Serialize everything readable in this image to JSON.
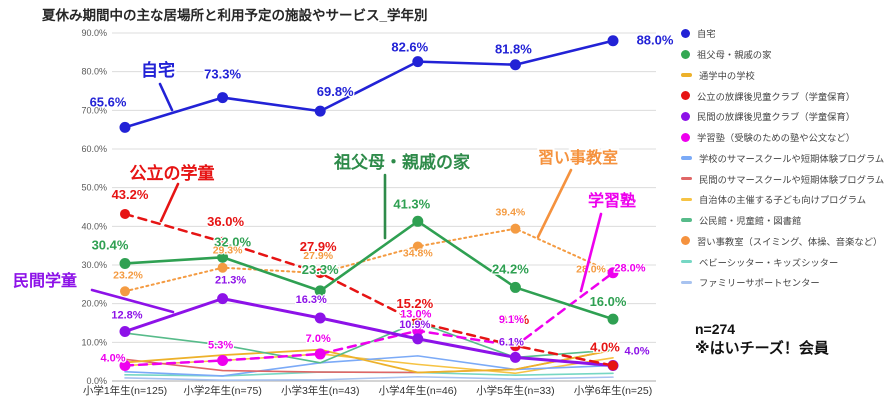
{
  "title": "夏休み期間中の主な居場所と利用予定の施設やサービス_学年別",
  "note": {
    "sample_size": "n=274",
    "membership": "※はいチーズ！会員"
  },
  "legend": {
    "position": "right",
    "items": [
      {
        "key": "home",
        "label": "自宅",
        "color": "#2222d6",
        "marker": "dot"
      },
      {
        "key": "grandparents-house",
        "label": "祖父母・親戚の家",
        "color": "#34a853",
        "marker": "dot"
      },
      {
        "key": "current-school",
        "label": "通学中の学校",
        "color": "#edb12a",
        "marker": "line"
      },
      {
        "key": "public-afterschool-club",
        "label": "公立の放課後児童クラブ（学童保育）",
        "color": "#e61414",
        "marker": "dot"
      },
      {
        "key": "private-afterschool-club",
        "label": "民間の放課後児童クラブ（学童保育）",
        "color": "#8d12e8",
        "marker": "dot"
      },
      {
        "key": "cram-school",
        "label": "学習塾（受験のための塾や公文など）",
        "color": "#ee00ee",
        "marker": "dot"
      },
      {
        "key": "school-summer-program",
        "label": "学校のサマースクールや短期体験プログラム",
        "color": "#7baaf7",
        "marker": "line"
      },
      {
        "key": "private-summer-program",
        "label": "民間のサマースクールや短期体験プログラム",
        "color": "#e06666",
        "marker": "line"
      },
      {
        "key": "municipal-program",
        "label": "自治体の主催する子ども向けプログラム",
        "color": "#f6c344",
        "marker": "line"
      },
      {
        "key": "community-center",
        "label": "公民館・児童館・図書館",
        "color": "#57bb8a",
        "marker": "line"
      },
      {
        "key": "lesson-classes",
        "label": "習い事教室（スイミング、体操、音楽など）",
        "color": "#f5923e",
        "marker": "dot"
      },
      {
        "key": "babysitter",
        "label": "ベビーシッター・キッズシッター",
        "color": "#76d7c4",
        "marker": "line"
      },
      {
        "key": "family-support-center",
        "label": "ファミリーサポートセンター",
        "color": "#a8c3f0",
        "marker": "line"
      }
    ]
  },
  "chart_data": {
    "type": "line",
    "title": "夏休み期間中の主な居場所と利用予定の施設やサービス_学年別",
    "xlabel": "",
    "ylabel": "",
    "ylim": [
      0,
      90
    ],
    "grid": true,
    "legend_position": "right",
    "y_ticks": [
      "0.0%",
      "10.0%",
      "20.0%",
      "30.0%",
      "40.0%",
      "50.0%",
      "60.0%",
      "70.0%",
      "80.0%",
      "90.0%"
    ],
    "categories": [
      "小学1年生(n=125)",
      "小学2年生(n=75)",
      "小学3年生(n=43)",
      "小学4年生(n=46)",
      "小学5年生(n=33)",
      "小学6年生(n=25)"
    ],
    "series": [
      {
        "key": "home",
        "name": "自宅",
        "color": "#2222d6",
        "line_style": "solid",
        "marker": true,
        "values": [
          65.6,
          73.3,
          69.8,
          82.6,
          81.8,
          88.0
        ],
        "labels": [
          "65.6%",
          "73.3%",
          "69.8%",
          "82.6%",
          "81.8%",
          "88.0%"
        ]
      },
      {
        "key": "grandparents-house",
        "name": "祖父母・親戚の家",
        "color": "#2fa052",
        "line_style": "solid",
        "marker": true,
        "values": [
          30.4,
          32.0,
          23.3,
          41.3,
          24.2,
          16.0
        ],
        "labels": [
          "30.4%",
          "32.0%",
          "23.3%",
          "41.3%",
          "24.2%",
          "16.0%"
        ]
      },
      {
        "key": "current-school",
        "name": "通学中の学校",
        "color": "#edb12a",
        "line_style": "solid",
        "marker": false,
        "estimated": true,
        "values": [
          4.8,
          6.7,
          8.1,
          2.2,
          3.0,
          8.0
        ]
      },
      {
        "key": "public-afterschool-club",
        "name": "公立の放課後児童クラブ（学童保育）",
        "color": "#e61414",
        "line_style": "dashed",
        "marker": true,
        "values": [
          43.2,
          36.0,
          27.9,
          15.2,
          9.1,
          4.0
        ],
        "labels": [
          "43.2%",
          "36.0%",
          "27.9%",
          "15.2%",
          "9.1%",
          "4.0%"
        ]
      },
      {
        "key": "private-afterschool-club",
        "name": "民間の放課後児童クラブ（学童保育）",
        "color": "#8d12e8",
        "line_style": "solid",
        "marker": true,
        "values": [
          12.8,
          21.3,
          16.3,
          10.9,
          6.1,
          4.0
        ],
        "labels": [
          "12.8%",
          "21.3%",
          "16.3%",
          "10.9%",
          "6.1%",
          "4.0%"
        ]
      },
      {
        "key": "cram-school",
        "name": "学習塾（受験のための塾や公文など）",
        "color": "#ee00ee",
        "line_style": "dashed",
        "marker": true,
        "values": [
          4.0,
          5.3,
          7.0,
          13.0,
          9.1,
          28.0
        ],
        "labels": [
          "4.0%",
          "5.3%",
          "7.0%",
          "13.0%",
          "9.1%",
          "28.0%"
        ]
      },
      {
        "key": "school-summer-program",
        "name": "学校のサマースクールや短期体験プログラム",
        "color": "#7baaf7",
        "line_style": "solid",
        "marker": false,
        "estimated": true,
        "values": [
          2.4,
          1.3,
          4.7,
          6.5,
          3.0,
          4.0
        ]
      },
      {
        "key": "private-summer-program",
        "name": "民間のサマースクールや短期体験プログラム",
        "color": "#e06666",
        "line_style": "solid",
        "marker": false,
        "estimated": true,
        "values": [
          5.6,
          2.7,
          2.3,
          2.2,
          3.0,
          8.0
        ]
      },
      {
        "key": "municipal-program",
        "name": "自治体の主催する子ども向けプログラム",
        "color": "#f6c344",
        "line_style": "solid",
        "marker": false,
        "estimated": true,
        "values": [
          4.0,
          5.3,
          7.0,
          4.3,
          2.0,
          6.0
        ]
      },
      {
        "key": "community-center",
        "name": "公民館・児童館・図書館",
        "color": "#57bb8a",
        "line_style": "solid",
        "marker": false,
        "estimated": true,
        "values": [
          12.4,
          9.3,
          4.7,
          15.2,
          6.1,
          8.0
        ]
      },
      {
        "key": "lesson-classes",
        "name": "習い事教室（スイミング、体操、音楽など）",
        "color": "#f49b42",
        "line_style": "dotted",
        "marker": true,
        "values": [
          23.2,
          29.3,
          27.9,
          34.8,
          39.4,
          28.0
        ],
        "labels": [
          "23.2%",
          "29.3%",
          "27.9%",
          "34.8%",
          "39.4%",
          "28.0%"
        ]
      },
      {
        "key": "babysitter",
        "name": "ベビーシッター・キッズシッター",
        "color": "#76d7c4",
        "line_style": "solid",
        "marker": false,
        "estimated": true,
        "values": [
          1.6,
          1.3,
          2.3,
          2.2,
          1.5,
          2.0
        ]
      },
      {
        "key": "family-support-center",
        "name": "ファミリーサポートセンター",
        "color": "#a8c3f0",
        "line_style": "solid",
        "marker": false,
        "estimated": true,
        "values": [
          0.8,
          0.2,
          0.3,
          1.1,
          0.5,
          1.0
        ]
      }
    ],
    "annotations": [
      {
        "key": "home",
        "text": "自宅",
        "color": "#2222d6"
      },
      {
        "key": "public-afterschool-club",
        "text": "公立の学童",
        "color": "#e61414"
      },
      {
        "key": "grandparents-house",
        "text": "祖父母・親戚の家",
        "color": "#2e8b4a"
      },
      {
        "key": "lesson-classes",
        "text": "習い事教室",
        "color": "#f5923e"
      },
      {
        "key": "cram-school",
        "text": "学習塾",
        "color": "#ee00ee"
      },
      {
        "key": "private-afterschool-club",
        "text": "民間学童",
        "color": "#8d12e8"
      }
    ]
  }
}
